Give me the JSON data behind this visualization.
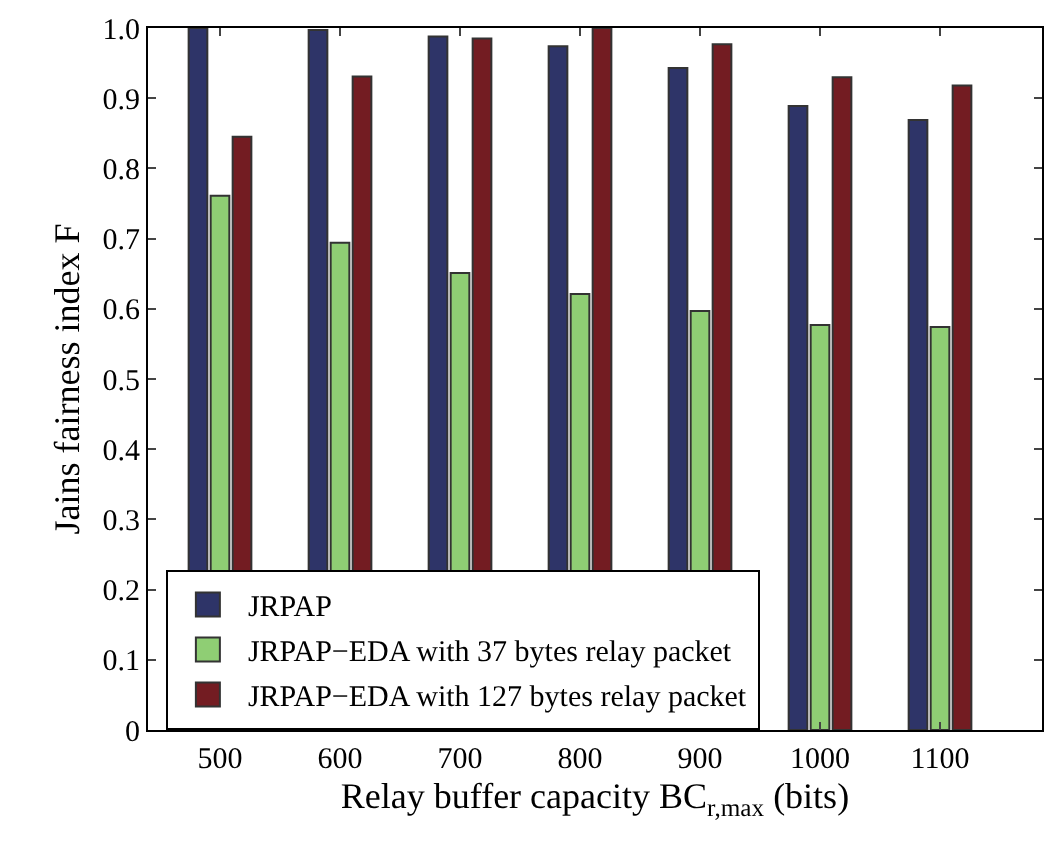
{
  "chart_data": {
    "type": "bar",
    "xlabel": "Relay buffer capacity BC$_{r,max}$ (bits)",
    "ylabel": "Jains fairness index F",
    "categories": [
      "500",
      "600",
      "700",
      "800",
      "900",
      "1000",
      "1100"
    ],
    "series": [
      {
        "name": "JRPAP",
        "color": "#2e3468",
        "values": [
          1.0,
          0.997,
          0.988,
          0.974,
          0.943,
          0.889,
          0.869
        ]
      },
      {
        "name": "JRPAP−EDA with 37 bytes relay packet",
        "color": "#8fce74",
        "values": [
          0.761,
          0.694,
          0.651,
          0.621,
          0.597,
          0.577,
          0.574
        ]
      },
      {
        "name": "JRPAP−EDA with 127 bytes relay packet",
        "color": "#731c22",
        "values": [
          0.845,
          0.931,
          0.985,
          1.0,
          0.977,
          0.93,
          0.918
        ]
      }
    ],
    "ylim": [
      0,
      1.0
    ],
    "yticks": [
      0,
      0.1,
      0.2,
      0.3,
      0.4,
      0.5,
      0.6,
      0.7,
      0.8,
      0.9,
      {
        "value": 1,
        "label": "1.0"
      }
    ],
    "legend": "bottom"
  }
}
